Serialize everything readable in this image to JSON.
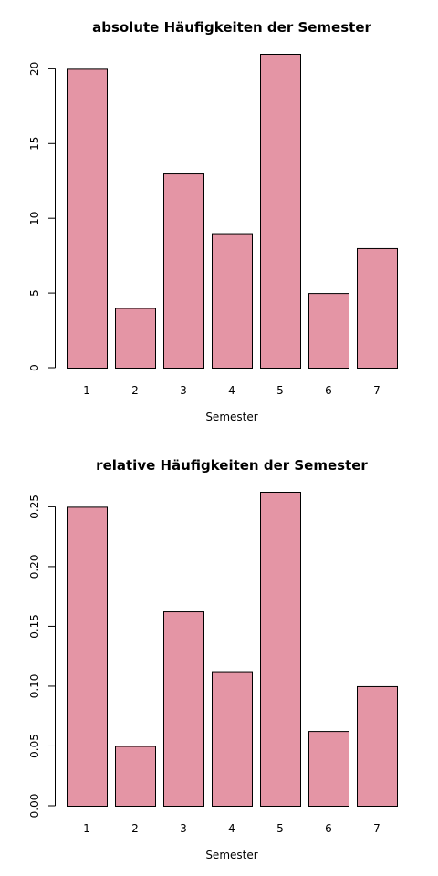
{
  "chart_data": [
    {
      "type": "bar",
      "title": "absolute Häufigkeiten der Semester",
      "xlabel": "Semester",
      "ylabel": "",
      "categories": [
        "1",
        "2",
        "3",
        "4",
        "5",
        "6",
        "7"
      ],
      "values": [
        20,
        4,
        13,
        9,
        21,
        5,
        8
      ],
      "ylim": [
        0,
        21
      ],
      "yticks": [
        "0",
        "5",
        "10",
        "15",
        "20"
      ],
      "bar_color": "#e495a5",
      "grid": false
    },
    {
      "type": "bar",
      "title": "relative Häufigkeiten der Semester",
      "xlabel": "Semester",
      "ylabel": "",
      "categories": [
        "1",
        "2",
        "3",
        "4",
        "5",
        "6",
        "7"
      ],
      "values": [
        0.25,
        0.05,
        0.1625,
        0.1125,
        0.2625,
        0.0625,
        0.1
      ],
      "ylim": [
        0,
        0.2625
      ],
      "yticks": [
        "0.00",
        "0.05",
        "0.10",
        "0.15",
        "0.20",
        "0.25"
      ],
      "bar_color": "#e495a5",
      "grid": false
    }
  ]
}
